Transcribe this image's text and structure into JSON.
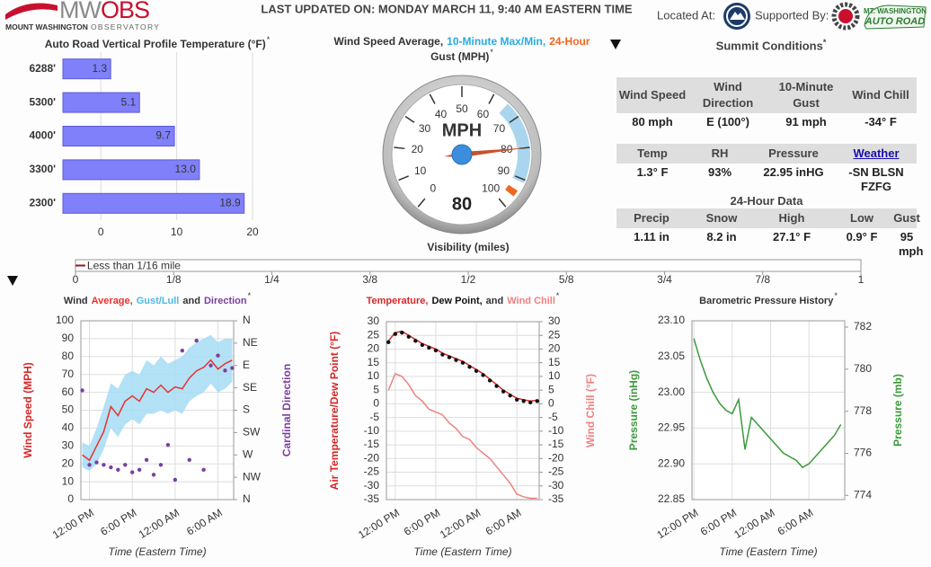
{
  "header": {
    "logo": [
      "MW",
      "OBS"
    ],
    "logo_sub": [
      "MOUNT WASHINGTON",
      "OBSERVATORY"
    ],
    "updated": "LAST UPDATED ON: MONDAY MARCH 11, 9:40 AM EASTERN TIME",
    "located": "Located At:",
    "supported": "Supported By:",
    "sponsor": [
      "MT. WASHINGTON",
      "AUTO ROAD"
    ]
  },
  "summit": {
    "title": "Summit Conditions",
    "note": "*",
    "current": {
      "headers": [
        "Wind Speed",
        "Wind Direction",
        "10-Minute Gust",
        "Wind Chill"
      ],
      "values": [
        "80 mph",
        "E (100°)",
        "91 mph",
        "-34° F"
      ]
    },
    "conditions": {
      "headers": [
        "Temp",
        "RH",
        "Pressure",
        "Weather"
      ],
      "values": [
        "1.3° F",
        "93%",
        "22.95 inHG",
        "-SN BLSN FZFG"
      ]
    },
    "daily": {
      "title": "24-Hour Data",
      "headers": [
        "Precip",
        "Snow",
        "High",
        "Low",
        "Gust"
      ],
      "values": [
        "1.11 in",
        "8.2 in",
        "27.1° F",
        "0.9° F",
        "95 mph"
      ]
    }
  },
  "chart_data": [
    {
      "type": "hbar",
      "title": [
        [
          {
            "text": "Auto Road Vertical Profile Temperature (°F)",
            "color": "#333333"
          },
          {
            "text": "*",
            "color": "#333333",
            "sup": true
          }
        ]
      ],
      "categories": [
        "6288'",
        "5300'",
        "4000'",
        "3300'",
        "2300'"
      ],
      "values": [
        1.3,
        5.1,
        9.7,
        13.0,
        18.9
      ],
      "value_labels": [
        "1.3",
        "5.1",
        "9.7",
        "13.0",
        "18.9"
      ],
      "color": "#8080fa",
      "stroke": "#5a5ad8",
      "xlim": [
        -5,
        20
      ],
      "xticks": [
        0,
        10,
        20
      ],
      "grid": true
    },
    {
      "type": "gauge",
      "title": [
        [
          {
            "text": "Wind Speed Average,",
            "color": "#333333"
          },
          {
            "text": "10-Minute Max/Min,",
            "color": "#29abe2"
          },
          {
            "text": "24-Hour",
            "color": "#f26522"
          }
        ],
        [
          {
            "text": "Gust (MPH)",
            "color": "#333333"
          },
          {
            "text": "*",
            "color": "#333333",
            "sup": true
          }
        ]
      ],
      "unit": "MPH",
      "value": 80,
      "range": [
        65,
        91
      ],
      "gust": 95,
      "lim": [
        0,
        100
      ],
      "ticks": [
        0,
        10,
        20,
        30,
        40,
        50,
        60,
        70,
        80,
        90,
        100
      ],
      "needle_color": "#c8502a",
      "band_color": "#a9d6ee",
      "gust_color": "#f26522",
      "hub_color": "#3b8ede"
    },
    {
      "type": "scalebar",
      "title": "Visibility (miles)",
      "values": [
        0.0125
      ],
      "value_labels": [
        "Less than 1/16 mile"
      ],
      "color": "#8b1a1a",
      "xlim": [
        0,
        1
      ],
      "xticks": [
        0,
        {
          "value": 0.125,
          "label": "1/8"
        },
        {
          "value": 0.25,
          "label": "1/4"
        },
        {
          "value": 0.375,
          "label": "3/8"
        },
        {
          "value": 0.5,
          "label": "1/2"
        },
        {
          "value": 0.625,
          "label": "5/8"
        },
        {
          "value": 0.75,
          "label": "3/4"
        },
        {
          "value": 0.875,
          "label": "7/8"
        },
        1
      ]
    },
    {
      "type": "line",
      "title": [
        [
          {
            "text": "Wind",
            "color": "#333333"
          },
          {
            "text": "Average,",
            "color": "#e8312f"
          },
          {
            "text": "Gust/Lull",
            "color": "#4fb8e8"
          },
          {
            "text": "and",
            "color": "#333333"
          },
          {
            "text": "Direction",
            "color": "#7b3fa0"
          },
          {
            "text": "*",
            "color": "#333333",
            "sup": true
          }
        ]
      ],
      "x": [
        11,
        12,
        13,
        14,
        15,
        16,
        17,
        18,
        19,
        20,
        21,
        22,
        23,
        24,
        25,
        26,
        27,
        28,
        29,
        30,
        31,
        32
      ],
      "series": [
        {
          "type": "band",
          "color": "#a6dcf5",
          "values": [
            32,
            30,
            40,
            52,
            65,
            62,
            70,
            72,
            70,
            78,
            75,
            80,
            76,
            78,
            80,
            85,
            88,
            90,
            92,
            88,
            90,
            90
          ],
          "values_low": [
            18,
            16,
            20,
            28,
            40,
            35,
            42,
            45,
            42,
            48,
            48,
            50,
            48,
            50,
            48,
            55,
            58,
            60,
            65,
            60,
            62,
            66
          ]
        },
        {
          "type": "line",
          "color": "#e8312f",
          "values": [
            25,
            22,
            30,
            38,
            52,
            47,
            55,
            58,
            55,
            62,
            60,
            64,
            60,
            63,
            62,
            68,
            72,
            74,
            78,
            73,
            76,
            78
          ]
        },
        {
          "type": "scatter",
          "axis": "y2",
          "color": "#7b3fa0",
          "values": [
            140,
            290,
            285,
            290,
            295,
            300,
            290,
            305,
            300,
            280,
            310,
            290,
            250,
            320,
            60,
            280,
            40,
            300,
            90,
            70,
            100,
            95
          ]
        }
      ],
      "xlim": [
        10.8,
        32.2
      ],
      "xticks": [
        {
          "value": 12,
          "label": "12:00 PM"
        },
        {
          "value": 18,
          "label": "6:00 PM"
        },
        {
          "value": 24,
          "label": "12:00 AM"
        },
        {
          "value": 30,
          "label": "6:00 AM"
        }
      ],
      "ylim": [
        0,
        100
      ],
      "yticks": [
        0,
        10,
        20,
        30,
        40,
        50,
        60,
        70,
        80,
        90,
        100
      ],
      "y2lim": [
        360,
        0
      ],
      "y2ticks": [
        {
          "value": 0,
          "label": "N"
        },
        {
          "value": 45,
          "label": "NE"
        },
        {
          "value": 90,
          "label": "E"
        },
        {
          "value": 135,
          "label": "SE"
        },
        {
          "value": 180,
          "label": "S"
        },
        {
          "value": 225,
          "label": "SW"
        },
        {
          "value": 270,
          "label": "W"
        },
        {
          "value": 315,
          "label": "NW"
        },
        {
          "value": 360,
          "label": "N"
        }
      ],
      "xlabel": "Time (Eastern Time)",
      "ylabel": "Wind Speed (MPH)",
      "ylabel_color": "#d62728",
      "y2label": "Cardinal Direction",
      "y2label_color": "#7b3fa0",
      "grid": true
    },
    {
      "type": "line",
      "title": [
        [
          {
            "text": "Temperature,",
            "color": "#d62728"
          },
          {
            "text": "Dew Point,",
            "color": "#111111"
          },
          {
            "text": "and",
            "color": "#333333"
          },
          {
            "text": "Wind Chill",
            "color": "#f08080"
          },
          {
            "text": "*",
            "color": "#333333",
            "sup": true
          }
        ]
      ],
      "x": [
        11,
        12,
        13,
        14,
        15,
        16,
        17,
        18,
        19,
        20,
        21,
        22,
        23,
        24,
        25,
        26,
        27,
        28,
        29,
        30,
        31,
        32,
        33
      ],
      "series": [
        {
          "type": "line",
          "color": "#d62728",
          "values": [
            23,
            26,
            26.5,
            25,
            23.5,
            22,
            21,
            20,
            18.5,
            17.5,
            16.5,
            15.5,
            14,
            12.5,
            11,
            9,
            7,
            5,
            3.5,
            2,
            1.5,
            1,
            1.3
          ]
        },
        {
          "type": "scatter",
          "color": "#111111",
          "values": [
            22.5,
            25.5,
            26,
            24.5,
            23,
            21.5,
            20.5,
            19.5,
            18,
            17,
            16,
            15,
            13.5,
            12,
            10.5,
            8.5,
            6.5,
            4.5,
            3,
            1.5,
            1,
            0.5,
            1
          ]
        },
        {
          "type": "line",
          "axis": "y2",
          "color": "#f08080",
          "values": [
            5,
            11,
            10,
            7,
            3,
            1,
            -2,
            -3,
            -4,
            -7,
            -9,
            -12,
            -13,
            -16,
            -18,
            -20,
            -23,
            -26,
            -29,
            -33,
            -34,
            -34.5,
            -34.5
          ]
        }
      ],
      "xlim": [
        10.7,
        33.3
      ],
      "xticks": [
        {
          "value": 12,
          "label": "12:00 PM"
        },
        {
          "value": 18,
          "label": "6:00 PM"
        },
        {
          "value": 24,
          "label": "12:00 AM"
        },
        {
          "value": 30,
          "label": "6:00 AM"
        }
      ],
      "ylim": [
        -35,
        30
      ],
      "yticks": [
        -35,
        -30,
        -25,
        -20,
        -15,
        -10,
        -5,
        0,
        5,
        10,
        15,
        20,
        25,
        30
      ],
      "y2lim": [
        -35,
        30
      ],
      "y2ticks": [
        -35,
        -30,
        -25,
        -20,
        -15,
        -10,
        -5,
        0,
        5,
        10,
        15,
        20,
        25,
        30
      ],
      "xlabel": "Time (Eastern Time)",
      "ylabel": "Air Temperature/Dew Point (°F)",
      "ylabel_color": "#d62728",
      "y2label": "Wind Chill (°F)",
      "y2label_color": "#f08080",
      "grid": true
    },
    {
      "type": "line",
      "title": [
        [
          {
            "text": "Barometric Pressure History",
            "color": "#333333"
          },
          {
            "text": "*",
            "color": "#333333",
            "sup": true
          }
        ]
      ],
      "x": [
        12,
        13,
        14,
        15,
        16,
        17,
        18,
        19,
        20,
        21,
        22,
        23,
        24,
        25,
        26,
        27,
        28,
        29,
        30,
        31,
        32,
        33,
        34,
        35
      ],
      "series": [
        {
          "type": "line",
          "color": "#3a9a3a",
          "values": [
            23.075,
            23.045,
            23.02,
            23.0,
            22.985,
            22.975,
            22.97,
            22.99,
            22.92,
            22.965,
            22.955,
            22.945,
            22.935,
            22.925,
            22.915,
            22.91,
            22.905,
            22.895,
            22.9,
            22.91,
            22.92,
            22.93,
            22.94,
            22.955
          ]
        }
      ],
      "xlim": [
        11.7,
        35.6
      ],
      "xticks": [
        {
          "value": 12,
          "label": "12:00 PM"
        },
        {
          "value": 18,
          "label": "6:00 PM"
        },
        {
          "value": 24,
          "label": "12:00 AM"
        },
        {
          "value": 30,
          "label": "6:00 AM"
        }
      ],
      "ylim": [
        22.85,
        23.1
      ],
      "yticks": [
        {
          "value": 22.85,
          "label": "22.85"
        },
        {
          "value": 22.9,
          "label": "22.90"
        },
        {
          "value": 22.95,
          "label": "22.95"
        },
        {
          "value": 23.0,
          "label": "23.00"
        },
        {
          "value": 23.05,
          "label": "23.05"
        },
        {
          "value": 23.1,
          "label": "23.10"
        }
      ],
      "y2lim": [
        773.8,
        782.3
      ],
      "y2ticks": [
        774,
        776,
        778,
        780,
        782
      ],
      "xlabel": "Time (Eastern Time)",
      "ylabel": "Pressure (inHg)",
      "ylabel_color": "#3a9a3a",
      "y2label": "Pressure (mb)",
      "y2label_color": "#3a9a3a",
      "grid": true
    }
  ]
}
